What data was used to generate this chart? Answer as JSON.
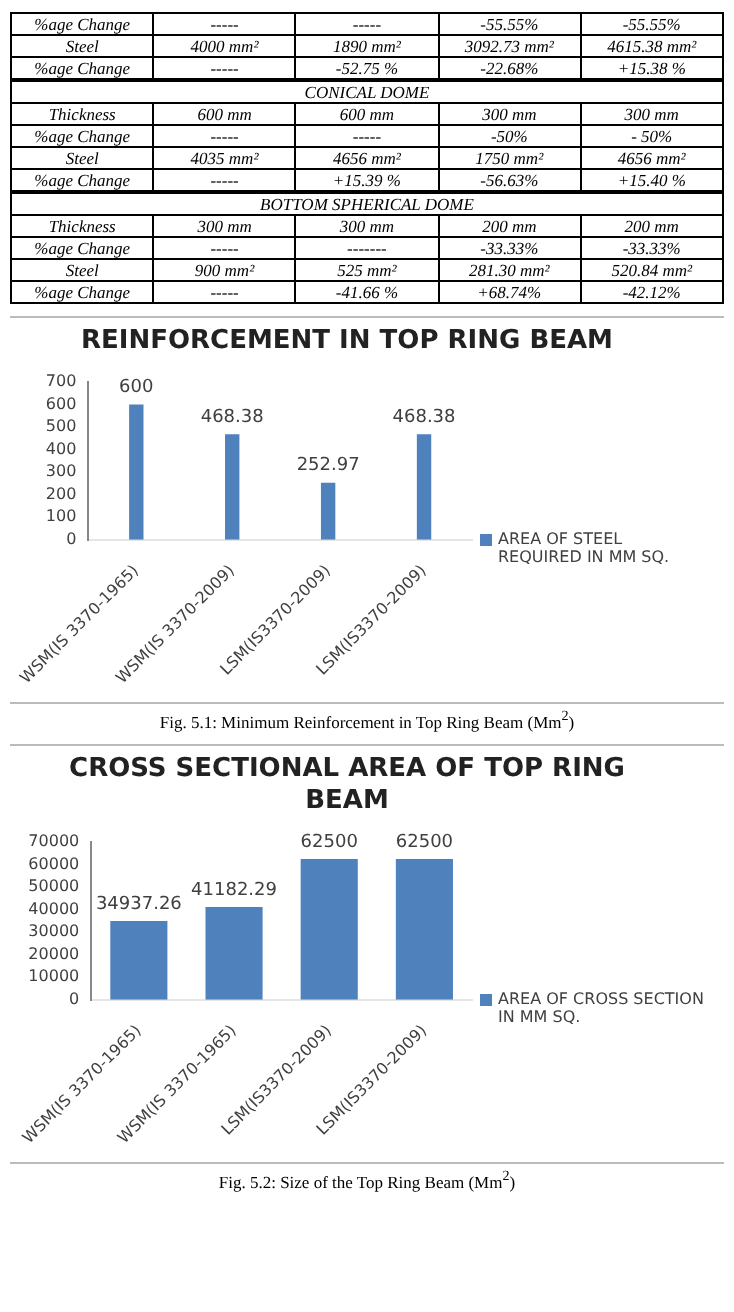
{
  "chart_data": [
    {
      "type": "other",
      "annotations": [
        "%age Change",
        "-----",
        "-----",
        "-55.55%",
        "-55.55%",
        "Steel",
        "4000 mm²",
        "1890 mm²",
        "3092.73 mm²",
        "4615.38 mm²",
        "%age Change",
        "-----",
        "-52.75 %",
        "-22.68%",
        "+15.38 %"
      ]
    },
    {
      "type": "other",
      "title": "CONICAL DOME",
      "annotations": [
        "Thickness",
        "600 mm",
        "600 mm",
        "300 mm",
        "300 mm",
        "%age Change",
        "-----",
        "-----",
        "-50%",
        "-  50%",
        "Steel",
        "4035 mm²",
        "4656 mm²",
        "1750 mm²",
        "4656 mm²",
        "%age Change",
        "-----",
        "+15.39 %",
        "-56.63%",
        "+15.40 %"
      ]
    },
    {
      "type": "other",
      "title": "BOTTOM SPHERICAL DOME",
      "annotations": [
        "Thickness",
        "300 mm",
        "300 mm",
        "200 mm",
        "200 mm",
        "%age Change",
        "-----",
        "-------",
        "-33.33%",
        "-33.33%",
        "Steel",
        "900 mm²",
        "525 mm²",
        "281.30 mm²",
        "520.84 mm²",
        "%age Change",
        "-----",
        "-41.66 %",
        "+68.74%",
        "-42.12%"
      ]
    },
    {
      "type": "bar",
      "title": "REINFORCEMENT IN  TOP RING BEAM",
      "categories": [
        "WSM(IS 3370-1965)",
        "WSM(IS 3370-2009)",
        "LSM(IS3370-2009)",
        "LSM(IS3370-2009)"
      ],
      "series": [
        {
          "name": "AREA OF STEEL REQUIRED IN MM SQ.",
          "color": "#4f81bd",
          "values": [
            600,
            468.38,
            252.97,
            468.38
          ]
        }
      ],
      "ylim": [
        0,
        700
      ],
      "yticks": [
        0,
        100,
        200,
        300,
        400,
        500,
        600,
        700
      ],
      "data_labels": true,
      "legend": "right",
      "annotations": [
        "Fig. 5.1: Minimum Reinforcement  in Top Ring Beam (Mm$^{2}$)"
      ]
    },
    {
      "type": "bar",
      "title": "CROSS SECTIONAL AREA OF TOP RING BEAM",
      "categories": [
        "WSM(IS 3370-1965)",
        "WSM(IS 3370-1965)",
        "LSM(IS3370-2009)",
        "LSM(IS3370-2009)"
      ],
      "series": [
        {
          "name": "AREA OF CROSS SECTION IN MM SQ.",
          "color": "#4f81bd",
          "values": [
            34937.26,
            41182.29,
            62500,
            62500
          ]
        }
      ],
      "ylim": [
        0,
        70000
      ],
      "yticks": [
        0,
        10000,
        20000,
        30000,
        40000,
        50000,
        60000,
        70000
      ],
      "data_labels": true,
      "legend": "right",
      "annotations": [
        "Fig. 5.2: Size of the Top Ring Beam (Mm$^{2}$)"
      ]
    }
  ]
}
